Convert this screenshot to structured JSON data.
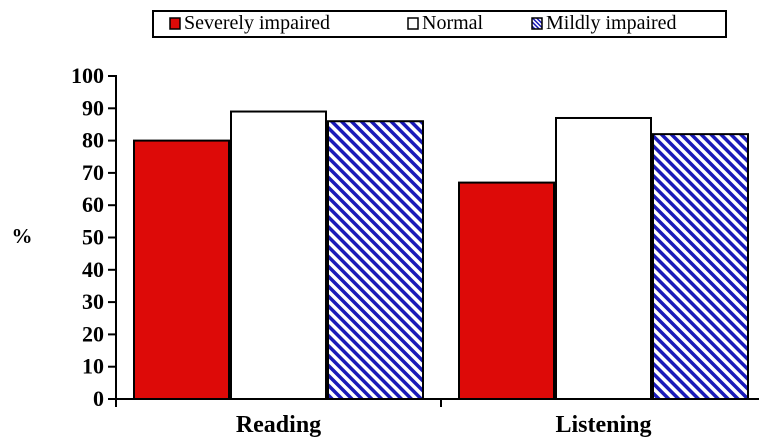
{
  "chart_data": {
    "type": "bar",
    "title": "",
    "xlabel": "",
    "ylabel": "%",
    "ylim": [
      0,
      100
    ],
    "yticks": [
      0,
      10,
      20,
      30,
      40,
      50,
      60,
      70,
      80,
      90,
      100
    ],
    "grid": false,
    "legend_position": "top",
    "categories": [
      "Reading",
      "Listening"
    ],
    "series": [
      {
        "name": "Severely impaired",
        "values": [
          80,
          67
        ],
        "color": "#dd0a08",
        "fill": "solid"
      },
      {
        "name": "Normal",
        "values": [
          89,
          87
        ],
        "color": "#ffffff",
        "fill": "solid"
      },
      {
        "name": "Mildly impaired",
        "values": [
          86,
          82
        ],
        "color": "#1a1ab8",
        "fill": "diagonal-hatch"
      }
    ]
  }
}
